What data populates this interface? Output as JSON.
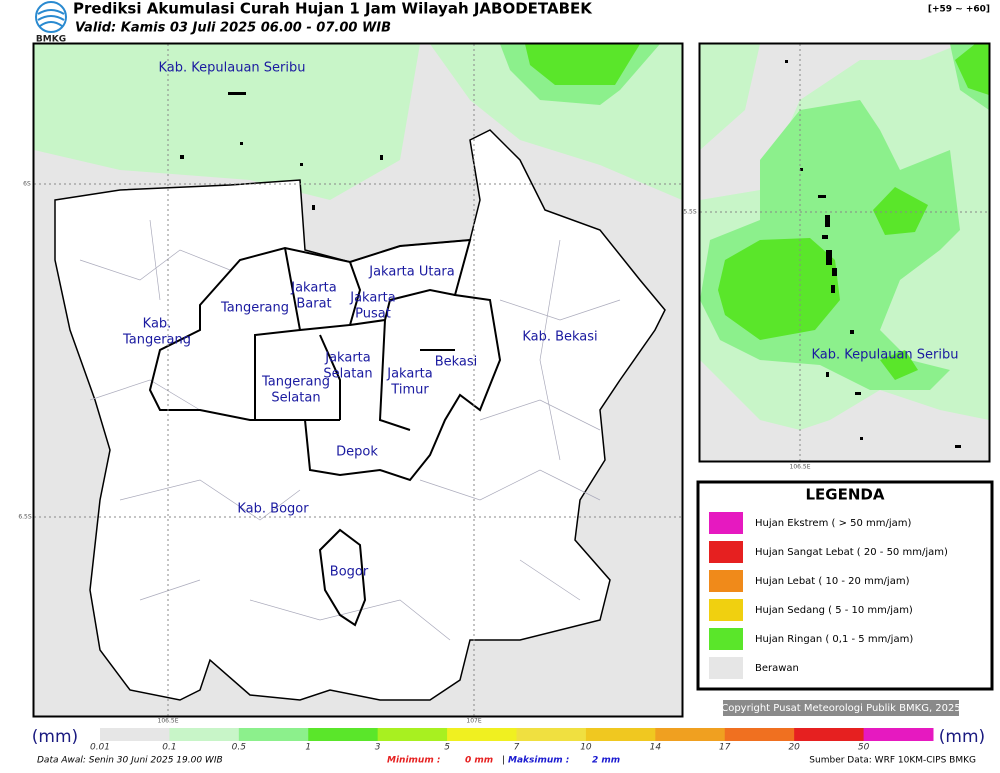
{
  "header": {
    "title": "Prediksi Akumulasi Curah Hujan 1 Jam Wilayah JABODETABEK",
    "subtitle": "Valid: Kamis 03 Juli 2025 06.00 - 07.00 WIB",
    "logo": "BMKG",
    "range": "[+59 ~ +60]"
  },
  "map": {
    "labels": [
      {
        "lines": [
          "Kab. Kepulauan Seribu"
        ]
      },
      {
        "lines": [
          "Jakarta Utara"
        ]
      },
      {
        "lines": [
          "Jakarta",
          "Barat"
        ]
      },
      {
        "lines": [
          "Jakarta",
          "Pusat"
        ]
      },
      {
        "lines": [
          "Tangerang"
        ]
      },
      {
        "lines": [
          "Kab.",
          "Tangerang"
        ]
      },
      {
        "lines": [
          "Kab. Bekasi"
        ]
      },
      {
        "lines": [
          "Jakarta",
          "Selatan"
        ]
      },
      {
        "lines": [
          "Bekasi"
        ]
      },
      {
        "lines": [
          "Jakarta",
          "Timur"
        ]
      },
      {
        "lines": [
          "Tangerang",
          "Selatan"
        ]
      },
      {
        "lines": [
          "Depok"
        ]
      },
      {
        "lines": [
          "Kab. Bogor"
        ]
      },
      {
        "lines": [
          "Bogor"
        ]
      }
    ],
    "lat_labels": [
      "6S",
      "6.5S"
    ],
    "lon_labels": [
      "106.5E",
      "107E"
    ]
  },
  "inset": {
    "label": "Kab. Kepulauan Seribu",
    "lat_label": "5.5S",
    "lon_label": "106.5E"
  },
  "legend": {
    "title": "LEGENDA",
    "items": [
      {
        "label": "Hujan Ekstrem ( > 50 mm/jam)",
        "color": "#e619c0"
      },
      {
        "label": "Hujan Sangat Lebat ( 20 - 50 mm/jam)",
        "color": "#e62020"
      },
      {
        "label": "Hujan Lebat ( 10 - 20 mm/jam)",
        "color": "#f08a1a"
      },
      {
        "label": "Hujan Sedang ( 5 - 10 mm/jam)",
        "color": "#f0d010"
      },
      {
        "label": "Hujan Ringan ( 0,1 - 5 mm/jam)",
        "color": "#5ae62a"
      },
      {
        "label": "Berawan",
        "color": "#e6e6e6"
      }
    ]
  },
  "copyright": "Copyright Pusat Meteorologi Publik BMKG, 2025",
  "colorbar": {
    "unit_left": "(mm)",
    "unit_right": "(mm)",
    "ticks": [
      {
        "label": "0.01",
        "color": "#e6e6e6"
      },
      {
        "label": "0.1",
        "color": "#c8f5c8"
      },
      {
        "label": "0.5",
        "color": "#8cf08c"
      },
      {
        "label": "1",
        "color": "#5ae62a"
      },
      {
        "label": "3",
        "color": "#a8f020"
      },
      {
        "label": "5",
        "color": "#f0f020"
      },
      {
        "label": "7",
        "color": "#f0e040"
      },
      {
        "label": "10",
        "color": "#f0c820"
      },
      {
        "label": "14",
        "color": "#f0a020"
      },
      {
        "label": "17",
        "color": "#f07020"
      },
      {
        "label": "20",
        "color": "#e62020"
      },
      {
        "label": "50",
        "color": "#e619c0"
      }
    ]
  },
  "footer": {
    "data_awal": "Data Awal: Senin 30 Juni 2025 19.00 WIB",
    "min_label": "Minimum :",
    "min_value": "0 mm",
    "separator": "|",
    "max_label": "Maksimum :",
    "max_value": "2 mm",
    "source": "Sumber Data: WRF 10KM-CIPS BMKG"
  }
}
